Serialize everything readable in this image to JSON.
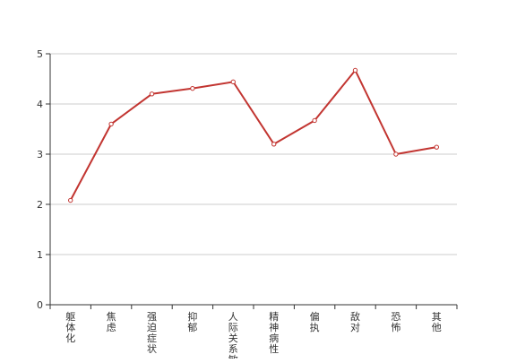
{
  "colors": {
    "series_line": "#c23531",
    "axis": "#333333",
    "grid": "#cccccc",
    "background": "#ffffff"
  },
  "chart_data": {
    "type": "line",
    "categories": [
      "躯体化",
      "焦虑",
      "强迫症状",
      "抑郁",
      "人际关系敏感",
      "精神病性",
      "偏执",
      "敌对",
      "恐怖",
      "其他"
    ],
    "series": [
      {
        "values": [
          2.08,
          3.6,
          4.2,
          4.31,
          4.44,
          3.2,
          3.67,
          4.67,
          3.0,
          3.14
        ]
      }
    ],
    "ylim": [
      0,
      5
    ],
    "yticks": [
      0,
      1,
      2,
      3,
      4,
      5
    ],
    "grid": true,
    "legend": "none",
    "markers": "hollow-circle"
  }
}
